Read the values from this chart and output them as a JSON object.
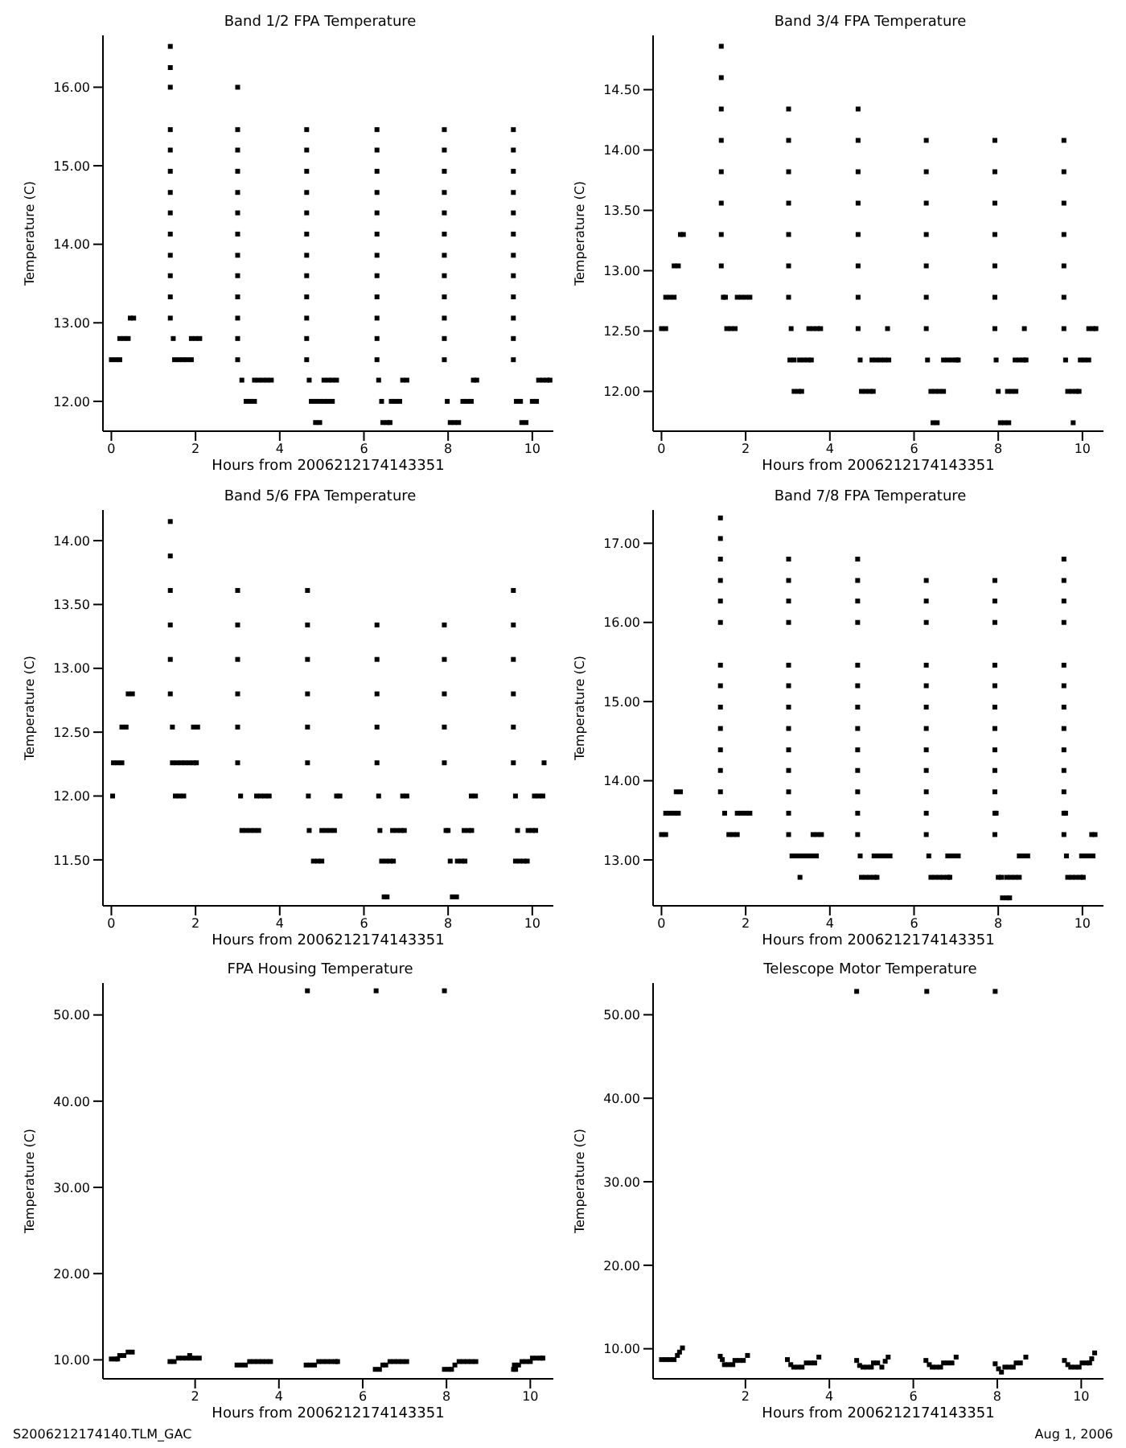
{
  "chart_data": [
    {
      "type": "scatter",
      "title": "Band 1/2 FPA Temperature",
      "xlabel": "Hours from 2006212174143351",
      "ylabel": "Temperature (C)",
      "marker": "square",
      "xlim": [
        -0.2,
        10.5
      ],
      "xticks": [
        0,
        2,
        4,
        6,
        8,
        10
      ],
      "ylim": [
        11.62,
        16.66
      ],
      "yticks": [
        {
          "value": 12,
          "label": "12.00"
        },
        {
          "value": 13,
          "label": "13.00"
        },
        {
          "value": 14,
          "label": "14.00"
        },
        {
          "value": 15,
          "label": "15.00"
        },
        {
          "value": 16,
          "label": "16.00"
        }
      ],
      "series": [
        {
          "color": "#000000",
          "x": [
            0,
            0.1,
            0.2,
            0.2,
            0.3,
            0.4,
            0.45,
            0.53,
            1.4,
            1.4,
            1.4,
            1.4,
            1.4,
            1.4,
            1.4,
            1.4,
            1.4,
            1.4,
            1.4,
            1.4,
            1.4,
            1.47,
            1.5,
            1.6,
            1.7,
            1.8,
            1.9,
            1.9,
            2.0,
            2.1,
            3.0,
            3.0,
            3.0,
            3.0,
            3.0,
            3.0,
            3.0,
            3.0,
            3.0,
            3.0,
            3.0,
            3.0,
            3.0,
            3.1,
            3.2,
            3.3,
            3.4,
            3.4,
            3.5,
            3.6,
            3.7,
            3.8,
            4.64,
            4.64,
            4.64,
            4.64,
            4.64,
            4.64,
            4.64,
            4.64,
            4.64,
            4.64,
            4.64,
            4.64,
            4.7,
            4.75,
            4.85,
            4.95,
            5.05,
            5.15,
            5.25,
            4.85,
            4.95,
            5.05,
            5.15,
            5.25,
            5.35,
            6.31,
            6.31,
            6.31,
            6.31,
            6.31,
            6.31,
            6.31,
            6.31,
            6.31,
            6.31,
            6.31,
            6.31,
            6.35,
            6.42,
            6.45,
            6.55,
            6.62,
            6.65,
            6.75,
            6.85,
            6.92,
            7.02,
            7.91,
            7.91,
            7.91,
            7.91,
            7.91,
            7.91,
            7.91,
            7.91,
            7.91,
            7.91,
            7.91,
            7.91,
            7.98,
            8.05,
            8.15,
            8.25,
            8.35,
            8.45,
            8.55,
            8.6,
            8.68,
            9.55,
            9.55,
            9.55,
            9.55,
            9.55,
            9.55,
            9.55,
            9.55,
            9.55,
            9.55,
            9.55,
            9.55,
            9.62,
            9.72,
            9.75,
            9.85,
            10.0,
            10.1,
            10.15,
            10.25,
            10.35,
            10.42
          ],
          "values": [
            12.53,
            12.53,
            12.53,
            12.8,
            12.8,
            12.8,
            13.06,
            13.06,
            13.06,
            13.33,
            13.6,
            13.86,
            14.13,
            14.4,
            14.66,
            14.93,
            15.2,
            15.46,
            16.0,
            16.25,
            16.52,
            12.8,
            12.53,
            12.53,
            12.53,
            12.53,
            12.53,
            12.8,
            12.8,
            12.8,
            12.53,
            12.8,
            13.06,
            13.33,
            13.6,
            13.86,
            14.13,
            14.4,
            14.66,
            14.93,
            15.2,
            15.46,
            16.0,
            12.27,
            12.0,
            12.0,
            12.0,
            12.27,
            12.27,
            12.27,
            12.27,
            12.27,
            12.53,
            12.8,
            13.06,
            13.33,
            13.6,
            13.86,
            14.13,
            14.4,
            14.66,
            14.93,
            15.2,
            15.46,
            12.27,
            12.0,
            12.0,
            12.0,
            12.0,
            12.0,
            12.0,
            11.73,
            11.73,
            12.27,
            12.27,
            12.27,
            12.27,
            12.53,
            12.8,
            13.06,
            13.33,
            13.6,
            13.86,
            14.13,
            14.4,
            14.66,
            14.93,
            15.2,
            15.46,
            12.27,
            12.0,
            11.73,
            11.73,
            11.73,
            12.0,
            12.0,
            12.0,
            12.27,
            12.27,
            12.53,
            12.8,
            13.06,
            13.33,
            13.6,
            13.86,
            14.13,
            14.4,
            14.66,
            14.93,
            15.2,
            15.46,
            12.0,
            11.73,
            11.73,
            11.73,
            12.0,
            12.0,
            12.0,
            12.27,
            12.27,
            12.53,
            12.8,
            13.06,
            13.33,
            13.6,
            13.86,
            14.13,
            14.4,
            14.66,
            14.93,
            15.2,
            15.46,
            12.0,
            12.0,
            11.73,
            11.73,
            12.0,
            12.0,
            12.27,
            12.27,
            12.27,
            12.27
          ]
        }
      ]
    },
    {
      "type": "scatter",
      "title": "Band 3/4 FPA Temperature",
      "xlabel": "Hours from 2006212174143351",
      "ylabel": "Temperature (C)",
      "marker": "square",
      "xlim": [
        -0.2,
        10.5
      ],
      "xticks": [
        0,
        2,
        4,
        6,
        8,
        10
      ],
      "ylim": [
        11.67,
        14.95
      ],
      "yticks": [
        {
          "value": 12,
          "label": "12.00"
        },
        {
          "value": 12.5,
          "label": "12.50"
        },
        {
          "value": 13,
          "label": "13.00"
        },
        {
          "value": 13.5,
          "label": "13.50"
        },
        {
          "value": 14,
          "label": "14.00"
        },
        {
          "value": 14.5,
          "label": "14.50"
        }
      ],
      "series": [
        {
          "color": "#000000",
          "x": [
            0,
            0.1,
            0.1,
            0.2,
            0.3,
            0.3,
            0.4,
            0.45,
            0.52,
            1.42,
            1.42,
            1.42,
            1.42,
            1.42,
            1.42,
            1.42,
            1.42,
            1.47,
            1.52,
            1.55,
            1.65,
            1.75,
            1.8,
            1.9,
            2.0,
            2.1,
            3.02,
            3.02,
            3.02,
            3.02,
            3.02,
            3.02,
            3.02,
            3.08,
            3.05,
            3.15,
            3.28,
            3.38,
            3.48,
            3.56,
            3.15,
            3.25,
            3.33,
            3.5,
            3.6,
            3.7,
            3.78,
            4.67,
            4.67,
            4.67,
            4.67,
            4.67,
            4.67,
            4.67,
            4.67,
            4.72,
            4.75,
            4.85,
            4.95,
            5.03,
            5.0,
            5.1,
            5.2,
            5.3,
            5.4,
            5.37,
            6.29,
            6.29,
            6.29,
            6.29,
            6.29,
            6.29,
            6.29,
            6.32,
            6.4,
            6.5,
            6.6,
            6.7,
            6.45,
            6.55,
            6.7,
            6.8,
            6.9,
            7.0,
            7.05,
            7.92,
            7.92,
            7.92,
            7.92,
            7.92,
            7.92,
            7.92,
            7.95,
            8.0,
            8.05,
            8.15,
            8.25,
            8.22,
            8.32,
            8.42,
            8.4,
            8.5,
            8.6,
            8.66,
            8.62,
            9.56,
            9.56,
            9.56,
            9.56,
            9.56,
            9.56,
            9.56,
            9.6,
            9.65,
            9.75,
            9.85,
            9.92,
            9.78,
            9.95,
            10.05,
            10.15,
            10.15,
            10.25,
            10.32
          ],
          "values": [
            12.52,
            12.52,
            12.78,
            12.78,
            12.78,
            13.04,
            13.04,
            13.3,
            13.3,
            13.04,
            13.3,
            13.56,
            13.82,
            14.08,
            14.34,
            14.6,
            14.86,
            12.78,
            12.78,
            12.52,
            12.52,
            12.52,
            12.78,
            12.78,
            12.78,
            12.78,
            12.78,
            13.04,
            13.3,
            13.56,
            13.82,
            14.08,
            14.34,
            12.52,
            12.26,
            12.26,
            12.26,
            12.26,
            12.26,
            12.26,
            12.0,
            12.0,
            12.0,
            12.52,
            12.52,
            12.52,
            12.52,
            12.52,
            12.78,
            13.04,
            13.3,
            13.56,
            13.82,
            14.08,
            14.34,
            12.26,
            12.0,
            12.0,
            12.0,
            12.0,
            12.26,
            12.26,
            12.26,
            12.26,
            12.26,
            12.52,
            12.52,
            12.78,
            13.04,
            13.3,
            13.56,
            13.82,
            14.08,
            12.26,
            12.0,
            12.0,
            12.0,
            12.0,
            11.74,
            11.74,
            12.26,
            12.26,
            12.26,
            12.26,
            12.26,
            12.52,
            12.78,
            13.04,
            13.3,
            13.56,
            13.82,
            14.08,
            12.26,
            12.0,
            11.74,
            11.74,
            11.74,
            12.0,
            12.0,
            12.0,
            12.26,
            12.26,
            12.26,
            12.26,
            12.52,
            12.52,
            12.78,
            13.04,
            13.3,
            13.56,
            13.82,
            14.08,
            12.26,
            12.0,
            12.0,
            12.0,
            12.0,
            11.74,
            12.26,
            12.26,
            12.26,
            12.52,
            12.52,
            12.52
          ]
        }
      ]
    },
    {
      "type": "scatter",
      "title": "Band 5/6 FPA Temperature",
      "xlabel": "Hours from 2006212174143351",
      "ylabel": "Temperature (C)",
      "marker": "square",
      "xlim": [
        -0.2,
        10.5
      ],
      "xticks": [
        0,
        2,
        4,
        6,
        8,
        10
      ],
      "ylim": [
        11.14,
        14.24
      ],
      "yticks": [
        {
          "value": 11.5,
          "label": "11.50"
        },
        {
          "value": 12,
          "label": "12.00"
        },
        {
          "value": 12.5,
          "label": "12.50"
        },
        {
          "value": 13,
          "label": "13.00"
        },
        {
          "value": 13.5,
          "label": "13.50"
        },
        {
          "value": 14,
          "label": "14.00"
        }
      ],
      "series": [
        {
          "color": "#000000",
          "x": [
            0.03,
            0.05,
            0.15,
            0.25,
            0.25,
            0.35,
            0.4,
            0.5,
            1.4,
            1.4,
            1.4,
            1.4,
            1.4,
            1.4,
            1.45,
            1.45,
            1.55,
            1.65,
            1.75,
            1.85,
            1.95,
            2.02,
            1.52,
            1.62,
            1.72,
            1.95,
            2.05,
            3.0,
            3.0,
            3.0,
            3.0,
            3.0,
            3.0,
            3.07,
            3.1,
            3.2,
            3.3,
            3.4,
            3.5,
            3.45,
            3.55,
            3.65,
            3.75,
            4.66,
            4.66,
            4.66,
            4.66,
            4.66,
            4.66,
            4.68,
            4.7,
            4.8,
            4.9,
            5.0,
            5.0,
            5.1,
            5.2,
            5.3,
            5.35,
            5.43,
            6.31,
            6.31,
            6.31,
            6.31,
            6.31,
            6.35,
            6.38,
            6.42,
            6.52,
            6.62,
            6.7,
            6.48,
            6.55,
            6.68,
            6.78,
            6.88,
            6.96,
            6.92,
            7.02,
            7.91,
            7.91,
            7.91,
            7.91,
            7.91,
            7.95,
            8.0,
            8.05,
            8.1,
            8.2,
            8.22,
            8.32,
            8.4,
            8.38,
            8.48,
            8.56,
            8.55,
            8.65,
            9.55,
            9.55,
            9.55,
            9.55,
            9.55,
            9.55,
            9.6,
            9.65,
            9.6,
            9.7,
            9.8,
            9.88,
            9.9,
            10.0,
            10.08,
            10.05,
            10.15,
            10.25,
            10.28
          ],
          "values": [
            12.0,
            12.26,
            12.26,
            12.26,
            12.54,
            12.54,
            12.8,
            12.8,
            12.8,
            13.07,
            13.34,
            13.61,
            13.88,
            14.15,
            12.54,
            12.26,
            12.26,
            12.26,
            12.26,
            12.26,
            12.26,
            12.26,
            12.0,
            12.0,
            12.0,
            12.54,
            12.54,
            12.26,
            12.54,
            12.8,
            13.07,
            13.34,
            13.61,
            12.0,
            11.73,
            11.73,
            11.73,
            11.73,
            11.73,
            12.0,
            12.0,
            12.0,
            12.0,
            12.26,
            12.54,
            12.8,
            13.07,
            13.34,
            13.61,
            12.0,
            11.73,
            11.49,
            11.49,
            11.49,
            11.73,
            11.73,
            11.73,
            11.73,
            12.0,
            12.0,
            12.26,
            12.54,
            12.8,
            13.07,
            13.34,
            12.0,
            11.73,
            11.49,
            11.49,
            11.49,
            11.49,
            11.21,
            11.21,
            11.73,
            11.73,
            11.73,
            11.73,
            12.0,
            12.0,
            12.26,
            12.54,
            12.8,
            13.07,
            13.34,
            11.73,
            11.73,
            11.49,
            11.21,
            11.21,
            11.49,
            11.49,
            11.49,
            11.73,
            11.73,
            11.73,
            12.0,
            12.0,
            12.26,
            12.54,
            12.8,
            13.07,
            13.34,
            13.61,
            12.0,
            11.73,
            11.49,
            11.49,
            11.49,
            11.49,
            11.73,
            11.73,
            11.73,
            12.0,
            12.0,
            12.0,
            12.26
          ]
        }
      ]
    },
    {
      "type": "scatter",
      "title": "Band 7/8 FPA Temperature",
      "xlabel": "Hours from 2006212174143351",
      "ylabel": "Temperature (C)",
      "marker": "square",
      "xlim": [
        -0.2,
        10.5
      ],
      "xticks": [
        0,
        2,
        4,
        6,
        8,
        10
      ],
      "ylim": [
        12.42,
        17.42
      ],
      "yticks": [
        {
          "value": 13,
          "label": "13.00"
        },
        {
          "value": 14,
          "label": "14.00"
        },
        {
          "value": 15,
          "label": "15.00"
        },
        {
          "value": 16,
          "label": "16.00"
        },
        {
          "value": 17,
          "label": "17.00"
        }
      ],
      "series": [
        {
          "color": "#000000",
          "x": [
            0,
            0.1,
            0.1,
            0.2,
            0.3,
            0.4,
            0.35,
            0.45,
            1.4,
            1.4,
            1.4,
            1.4,
            1.4,
            1.4,
            1.4,
            1.4,
            1.4,
            1.4,
            1.4,
            1.4,
            1.4,
            1.5,
            1.6,
            1.7,
            1.8,
            1.8,
            1.9,
            2.0,
            2.1,
            3.02,
            3.02,
            3.02,
            3.02,
            3.02,
            3.02,
            3.02,
            3.02,
            3.02,
            3.02,
            3.02,
            3.02,
            3.02,
            3.1,
            3.2,
            3.3,
            3.4,
            3.5,
            3.6,
            3.68,
            3.29,
            3.6,
            3.7,
            3.8,
            4.66,
            4.66,
            4.66,
            4.66,
            4.66,
            4.66,
            4.66,
            4.66,
            4.66,
            4.66,
            4.66,
            4.66,
            4.66,
            4.72,
            4.75,
            4.85,
            4.95,
            5.05,
            5.12,
            5.05,
            5.15,
            5.25,
            5.35,
            5.43,
            6.29,
            6.29,
            6.29,
            6.29,
            6.29,
            6.29,
            6.29,
            6.29,
            6.29,
            6.29,
            6.29,
            6.29,
            6.35,
            6.4,
            6.5,
            6.6,
            6.7,
            6.8,
            6.85,
            6.8,
            6.9,
            7.0,
            7.05,
            7.92,
            7.92,
            7.92,
            7.92,
            7.92,
            7.92,
            7.92,
            7.92,
            7.92,
            7.92,
            7.92,
            7.92,
            7.95,
            8.0,
            8.08,
            8.1,
            8.2,
            8.27,
            8.2,
            8.3,
            8.4,
            8.5,
            8.5,
            8.6,
            8.7,
            9.56,
            9.56,
            9.56,
            9.56,
            9.56,
            9.56,
            9.56,
            9.56,
            9.56,
            9.56,
            9.56,
            9.56,
            9.56,
            9.6,
            9.62,
            9.65,
            9.75,
            9.85,
            9.95,
            10.02,
            9.98,
            10.08,
            10.18,
            10.25,
            10.22,
            10.3
          ],
          "values": [
            13.32,
            13.32,
            13.59,
            13.59,
            13.59,
            13.59,
            13.86,
            13.86,
            13.86,
            14.13,
            14.39,
            14.66,
            14.93,
            15.2,
            15.46,
            16.0,
            16.27,
            16.53,
            16.8,
            17.06,
            17.32,
            13.59,
            13.32,
            13.32,
            13.32,
            13.59,
            13.59,
            13.59,
            13.59,
            13.32,
            13.59,
            13.86,
            14.13,
            14.39,
            14.66,
            14.93,
            15.2,
            15.46,
            16.0,
            16.27,
            16.53,
            16.8,
            13.05,
            13.05,
            13.05,
            13.05,
            13.05,
            13.05,
            13.05,
            12.78,
            13.32,
            13.32,
            13.32,
            13.32,
            13.59,
            13.86,
            14.13,
            14.39,
            14.66,
            14.93,
            15.2,
            15.46,
            16.0,
            16.27,
            16.53,
            16.8,
            13.05,
            12.78,
            12.78,
            12.78,
            12.78,
            12.78,
            13.05,
            13.05,
            13.05,
            13.05,
            13.05,
            13.32,
            13.59,
            13.86,
            14.13,
            14.39,
            14.66,
            14.93,
            15.2,
            15.46,
            16.0,
            16.27,
            16.53,
            13.05,
            12.78,
            12.78,
            12.78,
            12.78,
            12.78,
            12.78,
            13.05,
            13.05,
            13.05,
            13.05,
            13.32,
            13.59,
            13.86,
            14.13,
            14.39,
            14.66,
            14.93,
            15.2,
            15.46,
            16.0,
            16.27,
            16.53,
            13.59,
            12.78,
            12.78,
            12.52,
            12.52,
            12.52,
            12.78,
            12.78,
            12.78,
            12.78,
            13.05,
            13.05,
            13.05,
            13.32,
            13.59,
            13.86,
            14.13,
            14.39,
            14.66,
            14.93,
            15.2,
            15.46,
            16.0,
            16.27,
            16.53,
            16.8,
            13.59,
            13.05,
            12.78,
            12.78,
            12.78,
            12.78,
            12.78,
            13.05,
            13.05,
            13.05,
            13.05,
            13.32,
            13.32
          ]
        }
      ]
    },
    {
      "type": "scatter",
      "title": "FPA Housing Temperature",
      "xlabel": "Hours from 2006212174143351",
      "ylabel": "Temperature (C)",
      "marker": "square",
      "xlim": [
        -0.2,
        10.55
      ],
      "xticks": [
        2,
        4,
        6,
        8,
        10
      ],
      "ylim": [
        7.8,
        53.7
      ],
      "yticks": [
        {
          "value": 10,
          "label": "10.00"
        },
        {
          "value": 20,
          "label": "20.00"
        },
        {
          "value": 30,
          "label": "30.00"
        },
        {
          "value": 40,
          "label": "40.00"
        },
        {
          "value": 50,
          "label": "50.00"
        }
      ],
      "annotations": [
        "S2006212174140.TLM_GAC"
      ],
      "series": [
        {
          "color": "#000000",
          "x": [
            0,
            0.1,
            0.15,
            0.2,
            0.3,
            0.4,
            0.5,
            1.4,
            1.5,
            1.6,
            1.7,
            1.8,
            1.9,
            2.0,
            2.1,
            1.87,
            3.0,
            3.1,
            3.2,
            3.3,
            3.4,
            3.5,
            3.6,
            3.7,
            3.8,
            4.68,
            4.65,
            4.75,
            4.85,
            4.95,
            5.05,
            5.15,
            5.25,
            5.35,
            5.4,
            6.32,
            6.3,
            6.4,
            6.48,
            6.55,
            6.65,
            6.75,
            6.85,
            6.95,
            7.05,
            7.95,
            7.95,
            8.05,
            8.12,
            8.2,
            8.3,
            8.4,
            8.5,
            8.6,
            8.7,
            9.6,
            9.65,
            9.62,
            9.72,
            9.8,
            9.9,
            10.0,
            10.05,
            10.15,
            10.25,
            10.3
          ],
          "values": [
            10.1,
            10.1,
            10.1,
            10.5,
            10.5,
            10.9,
            10.9,
            9.8,
            9.8,
            10.2,
            10.2,
            10.2,
            10.2,
            10.2,
            10.2,
            10.5,
            9.4,
            9.4,
            9.4,
            9.8,
            9.8,
            9.8,
            9.8,
            9.8,
            9.8,
            52.8,
            9.4,
            9.4,
            9.4,
            9.8,
            9.8,
            9.8,
            9.8,
            9.8,
            9.8,
            52.8,
            8.9,
            8.9,
            9.4,
            9.4,
            9.8,
            9.8,
            9.8,
            9.8,
            9.8,
            52.8,
            8.9,
            8.9,
            8.9,
            9.4,
            9.8,
            9.8,
            9.8,
            9.8,
            9.8,
            8.9,
            8.9,
            9.4,
            9.4,
            9.8,
            9.8,
            9.8,
            10.2,
            10.2,
            10.2,
            10.2
          ]
        }
      ]
    },
    {
      "type": "scatter",
      "title": "Telescope Motor Temperature",
      "xlabel": "Hours from 2006212174143351",
      "ylabel": "Temperature (C)",
      "marker": "square",
      "xlim": [
        -0.2,
        10.53
      ],
      "xticks": [
        2,
        4,
        6,
        8,
        10
      ],
      "ylim": [
        6.4,
        53.8
      ],
      "yticks": [
        {
          "value": 10,
          "label": "10.00"
        },
        {
          "value": 20,
          "label": "20.00"
        },
        {
          "value": 30,
          "label": "30.00"
        },
        {
          "value": 40,
          "label": "40.00"
        },
        {
          "value": 50,
          "label": "50.00"
        }
      ],
      "annotations": [
        "Aug  1, 2006"
      ],
      "series": [
        {
          "color": "#000000",
          "x": [
            0,
            0.1,
            0.2,
            0.3,
            0.38,
            0.43,
            0.5,
            1.4,
            1.45,
            1.5,
            1.6,
            1.7,
            1.75,
            1.85,
            1.95,
            2.05,
            3.0,
            3.08,
            3.15,
            3.25,
            3.35,
            3.45,
            3.55,
            3.65,
            3.75,
            4.65,
            4.65,
            4.72,
            4.8,
            4.9,
            5.0,
            5.05,
            5.15,
            5.25,
            5.33,
            5.4,
            6.32,
            6.3,
            6.38,
            6.45,
            6.55,
            6.65,
            6.72,
            6.82,
            6.92,
            7.02,
            7.95,
            7.95,
            8.03,
            8.1,
            8.18,
            8.28,
            8.38,
            8.45,
            8.55,
            8.68,
            9.6,
            9.68,
            9.75,
            9.85,
            9.95,
            10.02,
            10.12,
            10.2,
            10.25,
            10.32
          ],
          "values": [
            8.7,
            8.7,
            8.7,
            8.7,
            9.2,
            9.6,
            10.1,
            9.1,
            8.7,
            8.1,
            8.1,
            8.1,
            8.6,
            8.6,
            8.6,
            9.2,
            8.7,
            8.1,
            7.8,
            7.8,
            7.8,
            8.3,
            8.3,
            8.3,
            9.0,
            52.8,
            8.6,
            8.0,
            7.8,
            7.8,
            7.8,
            8.3,
            8.3,
            7.8,
            8.5,
            9.0,
            52.8,
            8.6,
            8.1,
            7.8,
            7.8,
            7.8,
            8.3,
            8.3,
            8.3,
            9.0,
            52.8,
            8.2,
            7.6,
            7.2,
            7.8,
            7.8,
            7.8,
            8.3,
            8.3,
            9.0,
            8.6,
            8.1,
            7.8,
            7.8,
            7.8,
            8.3,
            8.3,
            8.3,
            8.8,
            9.5
          ]
        }
      ]
    }
  ]
}
